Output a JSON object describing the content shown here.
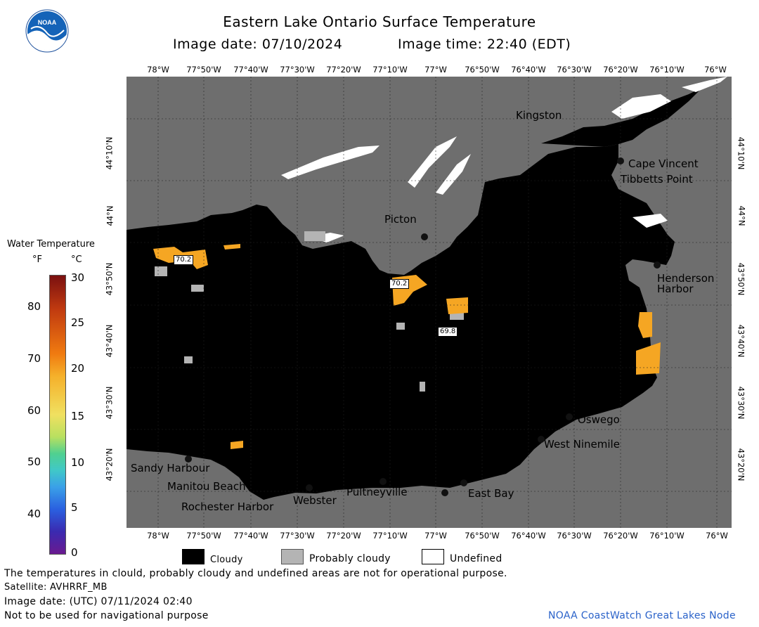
{
  "header": {
    "title": "Eastern Lake Ontario Surface Temperature",
    "image_date_label": "Image date: 07/10/2024",
    "image_time_label": "Image time: 22:40 (EDT)"
  },
  "logo": {
    "text": "NOAA"
  },
  "longitude_labels": [
    "78°W",
    "77°50'W",
    "77°40'W",
    "77°30'W",
    "77°20'W",
    "77°10'W",
    "77°W",
    "76°50'W",
    "76°40'W",
    "76°30'W",
    "76°20'W",
    "76°10'W",
    "76°W"
  ],
  "top_last_lon_label": "76°W",
  "latitude_labels": [
    "44°10'N",
    "44°N",
    "43°50'N",
    "43°40'N",
    "43°30'N",
    "43°20'N"
  ],
  "places": {
    "kingston": "Kingston",
    "cape_vincent": "Cape Vincent",
    "tibbetts_point": "Tibbetts Point",
    "picton": "Picton",
    "henderson_1": "Henderson",
    "henderson_2": "Harbor",
    "oswego": "Oswego",
    "west_ninemile": "West Ninemile",
    "sandy_harbour": "Sandy Harbour",
    "manitou_beach": "Manitou Beach",
    "rochester_harbor": "Rochester Harbor",
    "webster": "Webster",
    "pultneyville": "Pultneyville",
    "east_bay": "East Bay"
  },
  "callouts": [
    "70.2",
    "70.2",
    "69.8"
  ],
  "legend": {
    "title": "Water Temperature",
    "unit_f": "°F",
    "unit_c": "°C",
    "f_ticks": [
      "80",
      "70",
      "60",
      "50",
      "40"
    ],
    "c_ticks": [
      "30",
      "25",
      "20",
      "15",
      "10",
      "5",
      "0"
    ]
  },
  "mask_legend": {
    "cloudy": "Cloudy",
    "probably_cloudy": "Probably cloudy",
    "undefined": "Undefined"
  },
  "footer": {
    "disclaimer": "The temperatures in clould, probably cloudy and undefined areas are not for operational purpose.",
    "satellite": "Satellite: AVHRRF_MB",
    "utc_date": "Image date: (UTC) 07/11/2024  02:40",
    "nav_warning": "Not to be used for navigational purpose",
    "credit": "NOAA CoastWatch Great Lakes Node"
  },
  "colors": {
    "land": "#6e6e6e",
    "cloudy": "#000000",
    "probably_cloudy": "#b4b4b4",
    "undefined": "#ffffff",
    "warm_water": "#f5a623",
    "credit_link": "#2a62c9"
  }
}
